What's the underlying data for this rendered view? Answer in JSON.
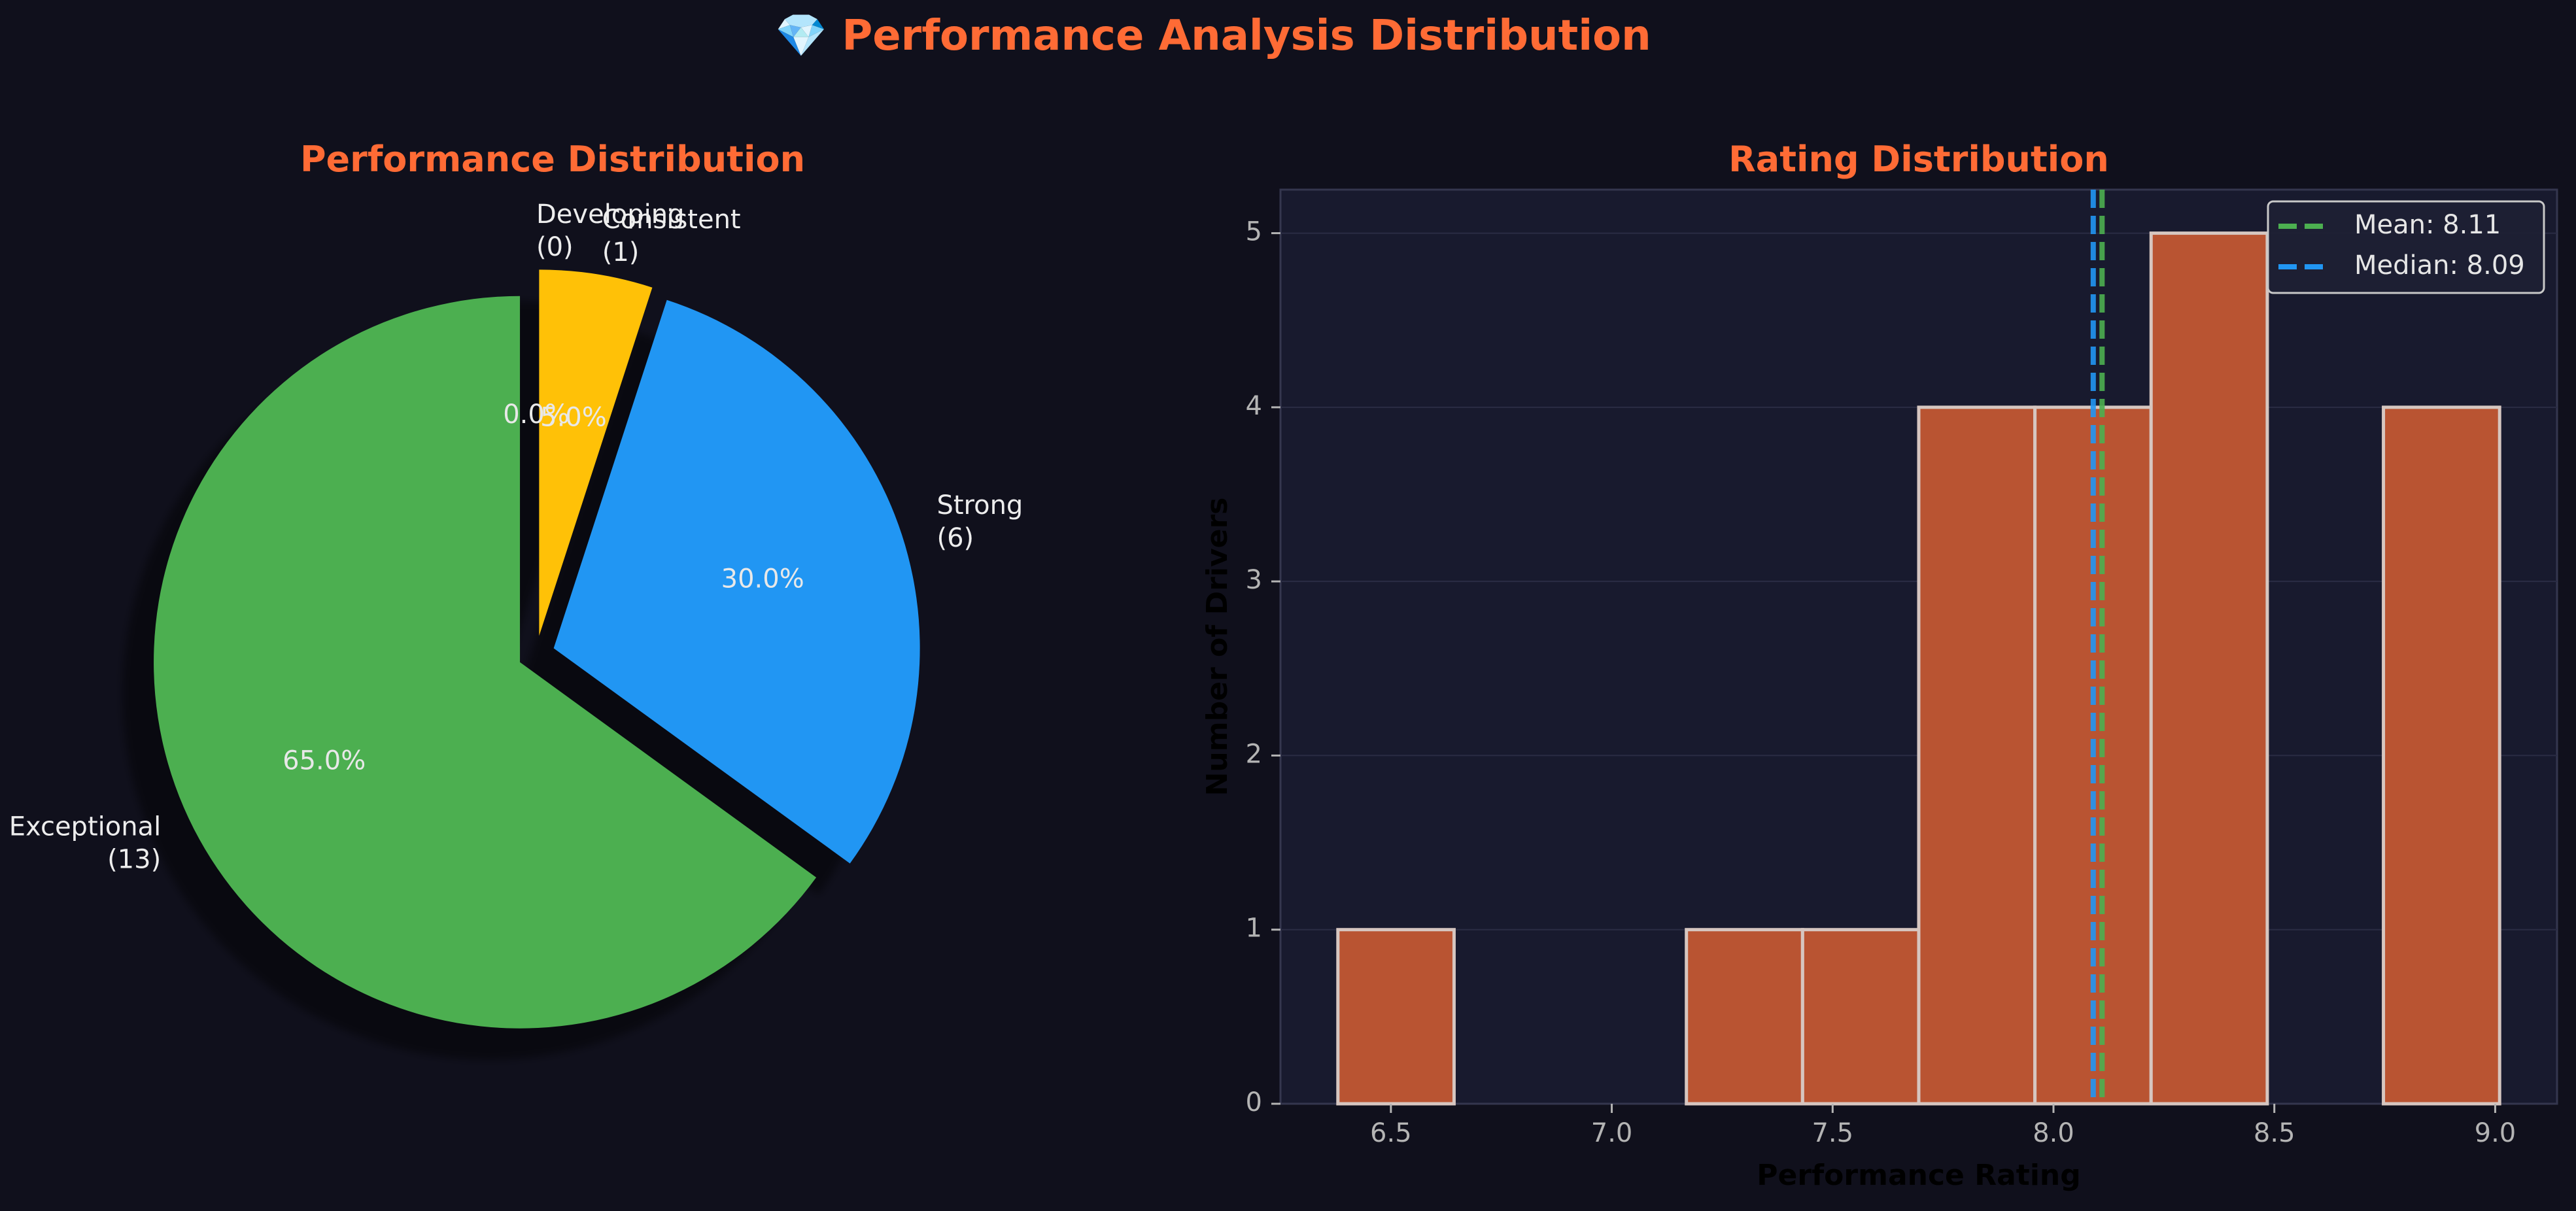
{
  "title": "💎 Performance Analysis Distribution",
  "colors": {
    "background": "#10101c",
    "axes_face": "#181a2e",
    "accent": "#ff6b35",
    "text": "#e6e6e6",
    "tick": "#b4b4b4",
    "grid": "#2a2c44",
    "bar": "#b95432",
    "bar_edge": "#d6c6c0"
  },
  "chart_data": [
    {
      "type": "pie",
      "title": "Performance Distribution",
      "slices": [
        {
          "label": "Developing",
          "count": "(0)",
          "value": 0,
          "pct_label": "0.0%",
          "color": "#9c27b0"
        },
        {
          "label": "Consistent",
          "count": "(1)",
          "value": 1,
          "pct_label": "5.0%",
          "color": "#ffc107"
        },
        {
          "label": "Strong",
          "count": "(6)",
          "value": 6,
          "pct_label": "30.0%",
          "color": "#2196f3"
        },
        {
          "label": "Exceptional",
          "count": "(13)",
          "value": 13,
          "pct_label": "65.0%",
          "color": "#4caf50"
        }
      ],
      "start_angle_deg": 90,
      "counterclock": false,
      "shadow": true,
      "exploded": true
    },
    {
      "type": "bar",
      "subtype": "histogram",
      "title": "Rating Distribution",
      "xlabel": "Performance Rating",
      "ylabel": "Number of Drivers",
      "bin_edges": [
        6.38,
        6.643,
        6.906,
        7.169,
        7.432,
        7.695,
        7.958,
        8.221,
        8.484,
        8.747,
        9.01
      ],
      "counts": [
        1,
        0,
        0,
        1,
        1,
        4,
        4,
        5,
        0,
        4
      ],
      "xlim": [
        6.25,
        9.14
      ],
      "ylim": [
        0,
        5.25
      ],
      "xticks": [
        6.5,
        7.0,
        7.5,
        8.0,
        8.5,
        9.0
      ],
      "xtick_labels": [
        "6.5",
        "7.0",
        "7.5",
        "8.0",
        "8.5",
        "9.0"
      ],
      "yticks": [
        0,
        1,
        2,
        3,
        4,
        5
      ],
      "ytick_labels": [
        "0",
        "1",
        "2",
        "3",
        "4",
        "5"
      ],
      "grid": true,
      "legend_position": "top-right",
      "reference_lines": [
        {
          "label": "Mean: 8.11",
          "x": 8.11,
          "color": "#4caf50"
        },
        {
          "label": "Median: 8.09",
          "x": 8.09,
          "color": "#2196f3"
        }
      ]
    }
  ]
}
